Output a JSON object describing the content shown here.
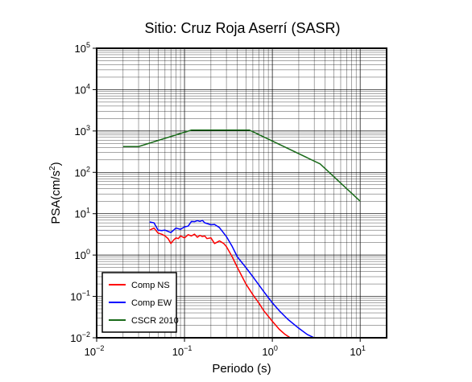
{
  "chart_data": {
    "type": "line",
    "title": "Sitio: Cruz Roja Aserrí (SASR)",
    "xlabel": "Periodo (s)",
    "ylabel_base": "PSA(cm/s",
    "ylabel_sup": "2",
    "ylabel_close": ")",
    "x_scale": "log",
    "y_scale": "log",
    "xlim": [
      0.01,
      20
    ],
    "ylim": [
      0.01,
      100000
    ],
    "grid": true,
    "legend_position": "bottom-left",
    "x_ticks": [
      {
        "base": "10",
        "exp": "−2",
        "value": 0.01
      },
      {
        "base": "10",
        "exp": "−1",
        "value": 0.1
      },
      {
        "base": "10",
        "exp": "0",
        "value": 1
      },
      {
        "base": "10",
        "exp": "1",
        "value": 10
      }
    ],
    "y_ticks": [
      {
        "base": "10",
        "exp": "−2",
        "value": 0.01
      },
      {
        "base": "10",
        "exp": "−1",
        "value": 0.1
      },
      {
        "base": "10",
        "exp": "0",
        "value": 1
      },
      {
        "base": "10",
        "exp": "1",
        "value": 10
      },
      {
        "base": "10",
        "exp": "2",
        "value": 100
      },
      {
        "base": "10",
        "exp": "3",
        "value": 1000
      },
      {
        "base": "10",
        "exp": "4",
        "value": 10000
      },
      {
        "base": "10",
        "exp": "5",
        "value": 100000
      }
    ],
    "series": [
      {
        "name": "Comp NS",
        "color": "#ff0000",
        "x": [
          0.04,
          0.045,
          0.05,
          0.055,
          0.06,
          0.065,
          0.07,
          0.075,
          0.08,
          0.085,
          0.09,
          0.1,
          0.11,
          0.12,
          0.13,
          0.14,
          0.15,
          0.16,
          0.17,
          0.18,
          0.2,
          0.22,
          0.25,
          0.28,
          0.3,
          0.35,
          0.4,
          0.5,
          0.6,
          0.7,
          0.8,
          1.0,
          1.2,
          1.4,
          1.6
        ],
        "y": [
          4.0,
          4.5,
          3.4,
          3.2,
          2.9,
          2.5,
          1.9,
          2.3,
          2.6,
          2.5,
          2.9,
          2.6,
          3.1,
          2.9,
          3.2,
          2.7,
          3.0,
          2.8,
          2.9,
          2.5,
          2.6,
          1.9,
          2.2,
          1.9,
          1.6,
          0.9,
          0.5,
          0.2,
          0.11,
          0.07,
          0.045,
          0.025,
          0.016,
          0.012,
          0.01
        ]
      },
      {
        "name": "Comp EW",
        "color": "#0000ff",
        "x": [
          0.04,
          0.045,
          0.05,
          0.055,
          0.06,
          0.07,
          0.08,
          0.09,
          0.1,
          0.11,
          0.12,
          0.13,
          0.14,
          0.15,
          0.16,
          0.17,
          0.18,
          0.2,
          0.22,
          0.25,
          0.3,
          0.35,
          0.4,
          0.5,
          0.6,
          0.8,
          1.0,
          1.2,
          1.5,
          2.0,
          2.5,
          3.0
        ],
        "y": [
          6.3,
          6.0,
          4.0,
          3.9,
          4.0,
          3.5,
          4.5,
          4.2,
          4.8,
          5.0,
          6.5,
          6.4,
          6.8,
          6.5,
          6.9,
          6.0,
          5.8,
          5.4,
          5.5,
          4.6,
          2.8,
          1.6,
          0.9,
          0.5,
          0.3,
          0.13,
          0.07,
          0.045,
          0.028,
          0.017,
          0.012,
          0.01
        ]
      },
      {
        "name": "CSCR 2010",
        "color": "#1a6b1a",
        "x": [
          0.02,
          0.03,
          0.12,
          0.55,
          3.5,
          10
        ],
        "y": [
          420,
          420,
          1050,
          1050,
          160,
          20
        ]
      }
    ]
  }
}
